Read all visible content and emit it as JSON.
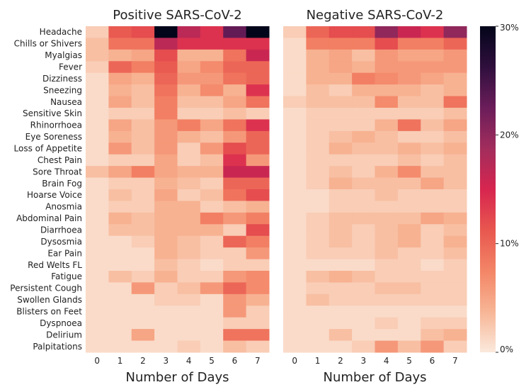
{
  "chart_data": {
    "type": "heatmap",
    "color_scale": {
      "min": 0,
      "max": 30,
      "tick_values": [
        0,
        10,
        20,
        30
      ],
      "tick_labels": [
        "0%",
        "10%",
        "20%",
        "30%"
      ],
      "colors": [
        "#fbe9dc",
        "#f7b595",
        "#f38566",
        "#e8574f",
        "#d7254f",
        "#a22d5c",
        "#6b1d5a",
        "#2f0f3d",
        "#03051a"
      ]
    },
    "x": [
      0,
      1,
      2,
      3,
      4,
      5,
      6,
      7
    ],
    "y": [
      "Headache",
      "Chills or Shivers",
      "Myalgias",
      "Fever",
      "Dizziness",
      "Sneezing",
      "Nausea",
      "Sensitive Skin",
      "Rhinorrhoea",
      "Eye Soreness",
      "Loss of Appetite",
      "Chest Pain",
      "Sore Throat",
      "Brain Fog",
      "Hoarse Voice",
      "Anosmia",
      "Abdominal Pain",
      "Diarrhoea",
      "Dysosmia",
      "Ear Pain",
      "Red Welts FL",
      "Fatigue",
      "Persistent Cough",
      "Swollen Glands",
      "Blisters on Feet",
      "Dyspnoea",
      "Delirium",
      "Palpitations"
    ],
    "xlabel": "Number of Days",
    "panels": [
      {
        "title": "Positive SARS-CoV-2",
        "values": [
          [
            2,
            11,
            12,
            30,
            17,
            14,
            23,
            30
          ],
          [
            3,
            9,
            9,
            17,
            14,
            14,
            14,
            14
          ],
          [
            3,
            4,
            5,
            12,
            4,
            4,
            9,
            16
          ],
          [
            2,
            10,
            8,
            11,
            5,
            7,
            10,
            10
          ],
          [
            1,
            5,
            4,
            10,
            6,
            6,
            9,
            10
          ],
          [
            1,
            4,
            3,
            9,
            4,
            7,
            4,
            14
          ],
          [
            1,
            5,
            3,
            8,
            3,
            3,
            5,
            9
          ],
          [
            1,
            2,
            2,
            8,
            2,
            2,
            3,
            2
          ],
          [
            1,
            5,
            3,
            6,
            8,
            5,
            9,
            14
          ],
          [
            1,
            4,
            3,
            6,
            4,
            3,
            6,
            10
          ],
          [
            1,
            6,
            3,
            6,
            2,
            6,
            12,
            10
          ],
          [
            1,
            2,
            2,
            5,
            2,
            3,
            14,
            6
          ],
          [
            3,
            5,
            8,
            5,
            4,
            4,
            16,
            16
          ],
          [
            1,
            2,
            2,
            4,
            3,
            2,
            10,
            10
          ],
          [
            1,
            3,
            2,
            5,
            2,
            3,
            9,
            12
          ],
          [
            1,
            2,
            2,
            4,
            4,
            2,
            3,
            4
          ],
          [
            1,
            4,
            3,
            4,
            4,
            8,
            6,
            8
          ],
          [
            1,
            3,
            3,
            4,
            4,
            4,
            2,
            12
          ],
          [
            1,
            1,
            2,
            4,
            3,
            2,
            10,
            8
          ],
          [
            1,
            1,
            1,
            4,
            3,
            2,
            2,
            6
          ],
          [
            1,
            1,
            1,
            3,
            2,
            1,
            2,
            2
          ],
          [
            1,
            3,
            2,
            4,
            2,
            2,
            6,
            7
          ],
          [
            1,
            1,
            6,
            2,
            3,
            6,
            10,
            7
          ],
          [
            1,
            1,
            1,
            2,
            2,
            1,
            6,
            4
          ],
          [
            1,
            1,
            1,
            1,
            1,
            1,
            6,
            2
          ],
          [
            1,
            1,
            1,
            1,
            1,
            1,
            2,
            2
          ],
          [
            1,
            1,
            5,
            1,
            1,
            1,
            9,
            9
          ],
          [
            1,
            1,
            1,
            1,
            2,
            1,
            3,
            2
          ]
        ]
      },
      {
        "title": "Negative SARS-CoV-2",
        "values": [
          [
            2,
            10,
            12,
            12,
            20,
            16,
            14,
            20
          ],
          [
            1,
            8,
            8,
            8,
            12,
            8,
            8,
            10
          ],
          [
            1,
            4,
            5,
            3,
            6,
            5,
            5,
            6
          ],
          [
            1,
            4,
            5,
            4,
            6,
            6,
            6,
            6
          ],
          [
            1,
            4,
            4,
            8,
            7,
            6,
            5,
            4
          ],
          [
            1,
            3,
            2,
            4,
            4,
            4,
            3,
            4
          ],
          [
            2,
            3,
            3,
            3,
            7,
            3,
            3,
            9
          ],
          [
            1,
            2,
            2,
            2,
            2,
            2,
            2,
            3
          ],
          [
            1,
            2,
            2,
            2,
            4,
            9,
            3,
            5
          ],
          [
            1,
            2,
            3,
            4,
            3,
            2,
            2,
            3
          ],
          [
            1,
            2,
            4,
            3,
            3,
            4,
            3,
            4
          ],
          [
            1,
            2,
            2,
            2,
            2,
            3,
            2,
            3
          ],
          [
            1,
            2,
            3,
            2,
            4,
            7,
            3,
            3
          ],
          [
            1,
            2,
            4,
            3,
            3,
            3,
            5,
            3
          ],
          [
            1,
            1,
            2,
            2,
            3,
            2,
            2,
            2
          ],
          [
            1,
            1,
            2,
            2,
            2,
            2,
            2,
            2
          ],
          [
            1,
            2,
            3,
            3,
            3,
            3,
            5,
            4
          ],
          [
            1,
            2,
            3,
            2,
            3,
            4,
            2,
            3
          ],
          [
            1,
            2,
            3,
            2,
            3,
            4,
            2,
            4
          ],
          [
            1,
            2,
            2,
            2,
            3,
            2,
            2,
            3
          ],
          [
            1,
            1,
            1,
            1,
            2,
            2,
            1,
            2
          ],
          [
            1,
            3,
            4,
            3,
            2,
            2,
            2,
            2
          ],
          [
            1,
            2,
            2,
            2,
            3,
            3,
            2,
            2
          ],
          [
            1,
            3,
            2,
            2,
            2,
            2,
            2,
            2
          ],
          [
            1,
            1,
            1,
            1,
            1,
            1,
            1,
            1
          ],
          [
            1,
            1,
            1,
            1,
            2,
            1,
            2,
            2
          ],
          [
            1,
            1,
            3,
            1,
            1,
            1,
            3,
            4
          ],
          [
            1,
            1,
            1,
            2,
            6,
            3,
            6,
            2
          ]
        ]
      }
    ]
  }
}
